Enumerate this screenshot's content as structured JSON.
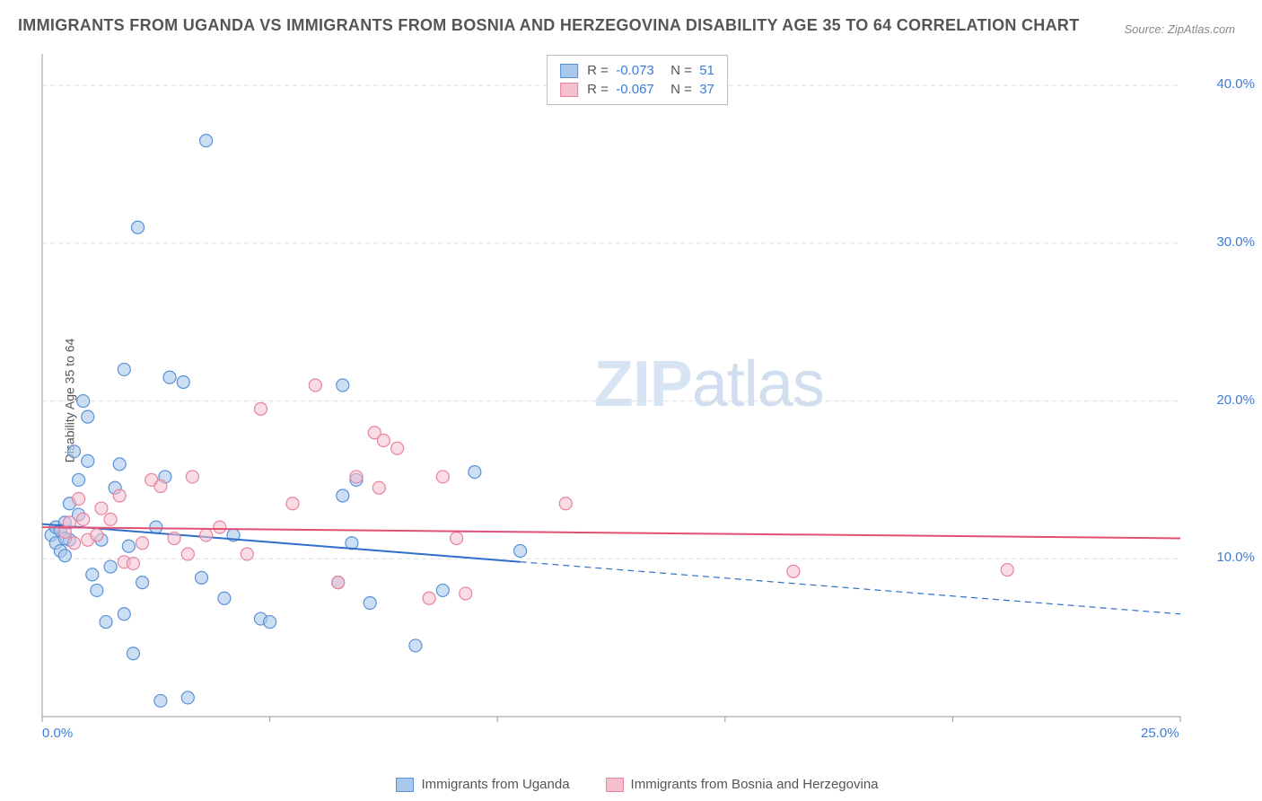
{
  "title": "IMMIGRANTS FROM UGANDA VS IMMIGRANTS FROM BOSNIA AND HERZEGOVINA DISABILITY AGE 35 TO 64 CORRELATION CHART",
  "source": "Source: ZipAtlas.com",
  "yaxis_label": "Disability Age 35 to 64",
  "watermark": {
    "bold": "ZIP",
    "thin": "atlas"
  },
  "chart": {
    "type": "scatter",
    "background_color": "#ffffff",
    "grid_color": "#dddddd",
    "axis_color": "#999999",
    "tick_label_color": "#3b7dd8",
    "xlim": [
      0,
      25
    ],
    "ylim": [
      0,
      42
    ],
    "xticks": [
      0,
      5,
      10,
      15,
      20,
      25
    ],
    "xtick_labels": [
      "0.0%",
      "",
      "",
      "",
      "",
      "25.0%"
    ],
    "yticks": [
      10,
      20,
      30,
      40
    ],
    "ytick_labels": [
      "10.0%",
      "20.0%",
      "30.0%",
      "40.0%"
    ],
    "series": [
      {
        "name": "Immigrants from Uganda",
        "color_fill": "#a8c8ec",
        "color_stroke": "#5a92d6",
        "marker_radius": 7,
        "marker_opacity": 0.6,
        "R": "-0.073",
        "N": "51",
        "trend": {
          "x1": 0,
          "y1": 12.2,
          "x2": 25,
          "y2": 6.5,
          "solid_until_x": 10.5,
          "color": "#2f6fc9",
          "width": 2
        },
        "points": [
          [
            0.2,
            11.5
          ],
          [
            0.3,
            12.0
          ],
          [
            0.3,
            11.0
          ],
          [
            0.4,
            10.5
          ],
          [
            0.5,
            10.2
          ],
          [
            0.4,
            11.8
          ],
          [
            0.5,
            12.3
          ],
          [
            0.6,
            11.2
          ],
          [
            0.6,
            13.5
          ],
          [
            0.7,
            16.8
          ],
          [
            0.8,
            15.0
          ],
          [
            0.8,
            12.8
          ],
          [
            0.9,
            20.0
          ],
          [
            1.0,
            19.0
          ],
          [
            1.0,
            16.2
          ],
          [
            1.1,
            9.0
          ],
          [
            1.2,
            8.0
          ],
          [
            1.3,
            11.2
          ],
          [
            1.4,
            6.0
          ],
          [
            1.5,
            9.5
          ],
          [
            1.6,
            14.5
          ],
          [
            1.7,
            16.0
          ],
          [
            1.8,
            22.0
          ],
          [
            1.8,
            6.5
          ],
          [
            1.9,
            10.8
          ],
          [
            2.0,
            4.0
          ],
          [
            2.1,
            31.0
          ],
          [
            2.2,
            8.5
          ],
          [
            2.5,
            12.0
          ],
          [
            2.6,
            1.0
          ],
          [
            2.7,
            15.2
          ],
          [
            2.8,
            21.5
          ],
          [
            3.1,
            21.2
          ],
          [
            3.2,
            1.2
          ],
          [
            3.5,
            8.8
          ],
          [
            3.6,
            36.5
          ],
          [
            4.0,
            7.5
          ],
          [
            4.2,
            11.5
          ],
          [
            4.8,
            6.2
          ],
          [
            5.0,
            6.0
          ],
          [
            6.5,
            8.5
          ],
          [
            6.6,
            21.0
          ],
          [
            6.8,
            11.0
          ],
          [
            6.9,
            15.0
          ],
          [
            6.6,
            14.0
          ],
          [
            7.2,
            7.2
          ],
          [
            8.2,
            4.5
          ],
          [
            8.8,
            8.0
          ],
          [
            9.5,
            15.5
          ],
          [
            10.5,
            10.5
          ],
          [
            0.5,
            11.3
          ]
        ]
      },
      {
        "name": "Immigrants from Bosnia and Herzegovina",
        "color_fill": "#f4c0cd",
        "color_stroke": "#e8839d",
        "marker_radius": 7,
        "marker_opacity": 0.55,
        "R": "-0.067",
        "N": "37",
        "trend": {
          "x1": 0,
          "y1": 12.0,
          "x2": 25,
          "y2": 11.3,
          "solid_until_x": 25,
          "color": "#e15075",
          "width": 2
        },
        "points": [
          [
            0.5,
            11.7
          ],
          [
            0.6,
            12.3
          ],
          [
            0.7,
            11.0
          ],
          [
            0.8,
            13.8
          ],
          [
            0.9,
            12.5
          ],
          [
            1.0,
            11.2
          ],
          [
            1.3,
            13.2
          ],
          [
            1.5,
            12.5
          ],
          [
            1.7,
            14.0
          ],
          [
            1.8,
            9.8
          ],
          [
            2.0,
            9.7
          ],
          [
            2.2,
            11.0
          ],
          [
            2.4,
            15.0
          ],
          [
            2.6,
            14.6
          ],
          [
            2.9,
            11.3
          ],
          [
            3.2,
            10.3
          ],
          [
            3.3,
            15.2
          ],
          [
            3.6,
            11.5
          ],
          [
            3.9,
            12.0
          ],
          [
            4.5,
            10.3
          ],
          [
            4.8,
            19.5
          ],
          [
            5.5,
            13.5
          ],
          [
            6.0,
            21.0
          ],
          [
            6.5,
            8.5
          ],
          [
            6.9,
            15.2
          ],
          [
            7.3,
            18.0
          ],
          [
            7.4,
            14.5
          ],
          [
            7.5,
            17.5
          ],
          [
            7.8,
            17.0
          ],
          [
            8.8,
            15.2
          ],
          [
            8.5,
            7.5
          ],
          [
            9.1,
            11.3
          ],
          [
            9.3,
            7.8
          ],
          [
            11.5,
            13.5
          ],
          [
            16.5,
            9.2
          ],
          [
            21.2,
            9.3
          ],
          [
            1.2,
            11.5
          ]
        ]
      }
    ]
  },
  "legend_bottom": [
    {
      "label": "Immigrants from Uganda",
      "fill": "#a8c8ec",
      "stroke": "#5a92d6"
    },
    {
      "label": "Immigrants from Bosnia and Herzegovina",
      "fill": "#f4c0cd",
      "stroke": "#e8839d"
    }
  ]
}
